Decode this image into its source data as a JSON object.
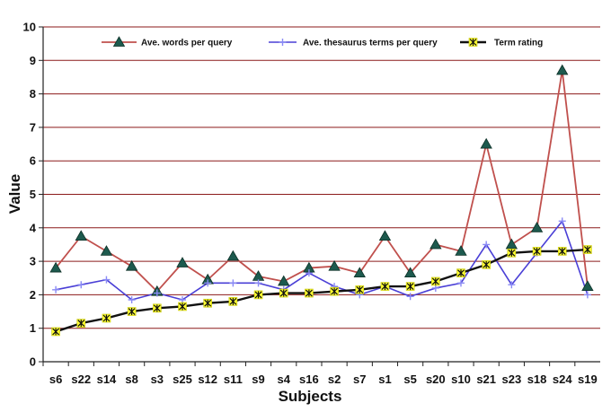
{
  "chart_data": {
    "type": "line",
    "title": "",
    "xlabel": "Subjects",
    "ylabel": "Value",
    "ylim": [
      0,
      10
    ],
    "yticks": [
      0,
      1,
      2,
      3,
      4,
      5,
      6,
      7,
      8,
      9,
      10
    ],
    "grid": true,
    "legend_position": "top",
    "categories": [
      "s6",
      "s22",
      "s14",
      "s8",
      "s3",
      "s25",
      "s12",
      "s11",
      "s9",
      "s4",
      "s16",
      "s2",
      "s7",
      "s1",
      "s5",
      "s20",
      "s10",
      "s21",
      "s23",
      "s18",
      "s24",
      "s19"
    ],
    "series": [
      {
        "name": "Ave. words per query",
        "color": "#c0504d",
        "marker": "triangle",
        "values": [
          2.8,
          3.75,
          3.3,
          2.85,
          2.1,
          2.95,
          2.45,
          3.15,
          2.55,
          2.4,
          2.8,
          2.85,
          2.65,
          3.75,
          2.65,
          3.5,
          3.3,
          6.5,
          3.5,
          4.0,
          8.7,
          2.25
        ]
      },
      {
        "name": "Ave. thesaurus terms per query",
        "color": "#4a3fd6",
        "marker": "plus",
        "values": [
          2.15,
          2.3,
          2.45,
          1.85,
          2.05,
          1.85,
          2.35,
          2.35,
          2.35,
          2.15,
          2.65,
          2.25,
          2.0,
          2.25,
          1.95,
          2.2,
          2.35,
          3.5,
          2.3,
          3.25,
          4.2,
          2.0
        ]
      },
      {
        "name": "Term rating",
        "color": "#111111",
        "marker": "star",
        "values": [
          0.9,
          1.15,
          1.3,
          1.5,
          1.6,
          1.65,
          1.75,
          1.8,
          2.0,
          2.05,
          2.05,
          2.1,
          2.15,
          2.25,
          2.25,
          2.4,
          2.65,
          2.9,
          3.25,
          3.3,
          3.3,
          3.35
        ]
      }
    ]
  }
}
